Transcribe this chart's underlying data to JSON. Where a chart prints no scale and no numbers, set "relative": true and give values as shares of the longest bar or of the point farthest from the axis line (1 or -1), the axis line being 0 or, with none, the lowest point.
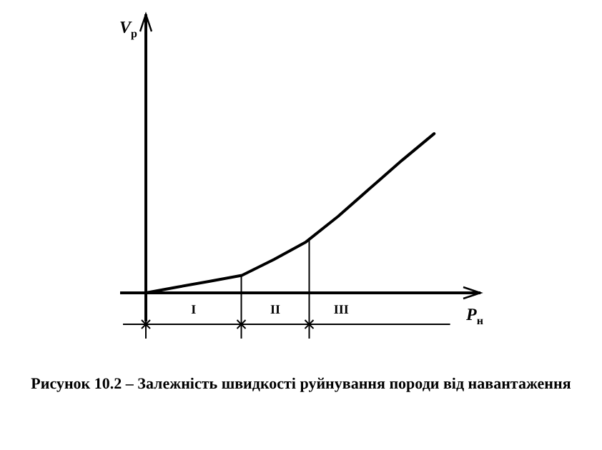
{
  "chart_data": {
    "type": "line",
    "relative": true,
    "tick_labels": false,
    "marker": "none",
    "line_style": "solid",
    "categories": [
      null,
      null,
      null,
      null,
      null,
      null,
      null,
      null,
      null,
      null,
      null
    ],
    "series": [
      {
        "color": "#000000",
        "values": [
          0,
          0.037,
          0.073,
          0.11,
          0.21,
          0.32,
          0.48,
          0.657,
          0.833,
          1,
          null
        ]
      }
    ],
    "annotations": [
      "V$_{р}$",
      "P$_{н}$",
      "I",
      "II",
      "III",
      "Рисунок 10.2 – Залежність швидкості руйнування породи від навантаження"
    ]
  }
}
